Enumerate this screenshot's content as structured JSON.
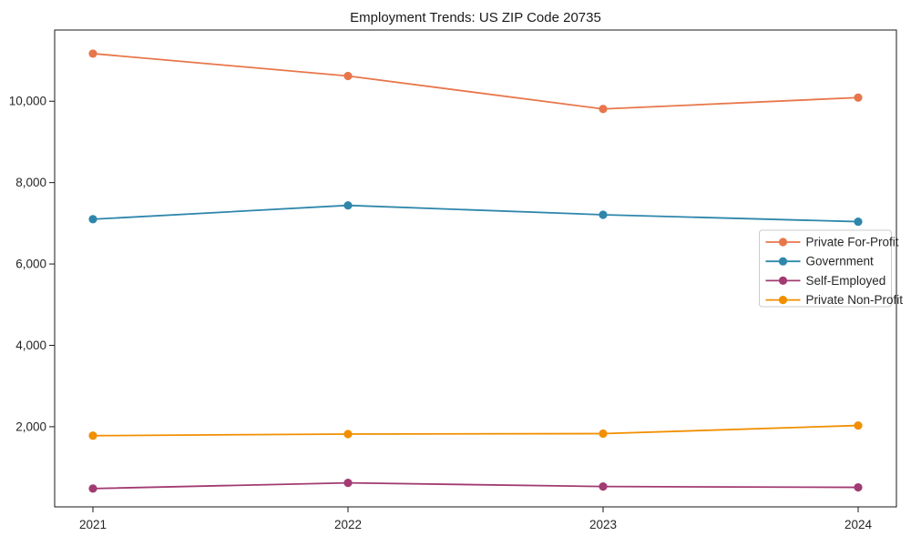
{
  "page": {
    "background": "#ffffff"
  },
  "chart_data": {
    "type": "line",
    "title": "Employment Trends: US ZIP Code 20735",
    "x_categories": [
      "2021",
      "2022",
      "2023",
      "2024"
    ],
    "series": [
      {
        "name": "Private For-Profit",
        "color": "#E8764B",
        "values": [
          11170,
          10620,
          9810,
          10090
        ]
      },
      {
        "name": "Government",
        "color": "#2E86AB",
        "values": [
          7100,
          7440,
          7210,
          7040
        ]
      },
      {
        "name": "Self-Employed",
        "color": "#A23B72",
        "values": [
          480,
          620,
          530,
          510
        ]
      },
      {
        "name": "Private Non-Profit",
        "color": "#F18F01",
        "values": [
          1780,
          1820,
          1830,
          2030
        ]
      }
    ],
    "xlabel": "",
    "ylabel": "",
    "y_ticks": [
      2000,
      4000,
      6000,
      8000,
      10000
    ],
    "y_tick_labels": [
      "2,000",
      "4,000",
      "6,000",
      "8,000",
      "10,000"
    ],
    "ylim": [
      30,
      11750
    ],
    "grid": false,
    "legend_position": "center right",
    "marker": "circle",
    "axis_color": "#1a1a1a",
    "text_color": "#262626",
    "legend_border_color": "#cccccc"
  }
}
